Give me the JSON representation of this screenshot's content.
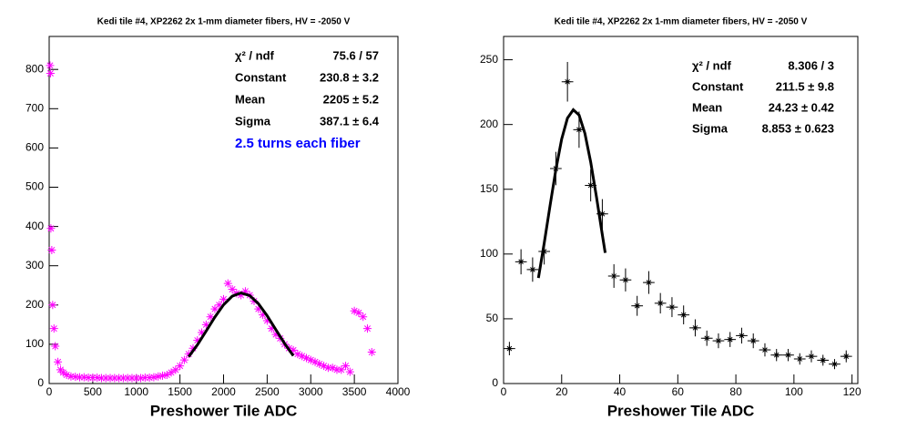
{
  "chart_data": [
    {
      "type": "scatter",
      "title": "Kedi tile #4, XP2262 2x 1-mm diameter fibers, HV = -2050 V",
      "x_label": "Preshower Tile ADC",
      "color": "#ff00ff",
      "marker": "asterisk",
      "xlim": [
        0,
        4000
      ],
      "ylim": [
        0,
        884
      ],
      "xticks": [
        0,
        500,
        1000,
        1500,
        2000,
        2500,
        3000,
        3500,
        4000
      ],
      "yticks": [
        0,
        100,
        200,
        300,
        400,
        500,
        600,
        700,
        800
      ],
      "x": [
        10,
        15,
        20,
        30,
        40,
        55,
        70,
        100,
        130,
        160,
        200,
        250,
        300,
        350,
        400,
        450,
        500,
        550,
        600,
        650,
        700,
        750,
        800,
        850,
        900,
        950,
        1000,
        1050,
        1100,
        1150,
        1200,
        1250,
        1300,
        1350,
        1400,
        1450,
        1500,
        1550,
        1600,
        1650,
        1700,
        1750,
        1800,
        1850,
        1900,
        1950,
        2000,
        2050,
        2100,
        2150,
        2200,
        2250,
        2300,
        2350,
        2400,
        2450,
        2500,
        2550,
        2600,
        2650,
        2700,
        2750,
        2800,
        2850,
        2900,
        2950,
        3000,
        3050,
        3100,
        3150,
        3200,
        3250,
        3300,
        3350,
        3400,
        3450,
        3500,
        3550,
        3600,
        3650,
        3700
      ],
      "values": [
        810,
        790,
        395,
        340,
        200,
        140,
        95,
        55,
        35,
        28,
        22,
        18,
        17,
        16,
        16,
        15,
        15,
        15,
        14,
        14,
        14,
        14,
        14,
        14,
        14,
        14,
        14,
        14,
        15,
        15,
        16,
        18,
        20,
        22,
        28,
        35,
        45,
        60,
        75,
        90,
        110,
        130,
        150,
        170,
        190,
        200,
        215,
        255,
        240,
        230,
        225,
        235,
        225,
        210,
        190,
        175,
        160,
        140,
        125,
        115,
        100,
        90,
        85,
        75,
        70,
        65,
        60,
        55,
        50,
        45,
        40,
        40,
        35,
        35,
        45,
        30,
        185,
        180,
        170,
        140,
        80
      ],
      "fit": {
        "color": "#000000",
        "x": [
          1600,
          1700,
          1800,
          1900,
          2000,
          2100,
          2200,
          2300,
          2400,
          2500,
          2600,
          2700,
          2800
        ],
        "y": [
          68.1,
          98.5,
          133.5,
          169.2,
          200.6,
          222.5,
          230.8,
          224.0,
          203.3,
          172.6,
          137.1,
          101.9,
          70.8
        ]
      },
      "stats": [
        {
          "label": "χ² / ndf",
          "value": "75.6 / 57"
        },
        {
          "label": "Constant",
          "value": "230.8 ± 3.2"
        },
        {
          "label": "Mean",
          "value": "2205 ± 5.2"
        },
        {
          "label": "Sigma",
          "value": "387.1 ± 6.4"
        }
      ],
      "annotation": "2.5 turns each fiber",
      "annotation_color": "#0000ff"
    },
    {
      "type": "scatter",
      "title": "Kedi tile #4, XP2262 2x 1-mm diameter fibers, HV = -2050 V",
      "x_label": "Preshower Tile ADC",
      "color": "#000000",
      "marker": "asterisk",
      "xlim": [
        0,
        122
      ],
      "ylim": [
        0,
        268
      ],
      "xticks": [
        0,
        20,
        40,
        60,
        80,
        100,
        120
      ],
      "yticks": [
        0,
        50,
        100,
        150,
        200,
        250
      ],
      "x": [
        2,
        6,
        10,
        14,
        18,
        22,
        26,
        30,
        34,
        38,
        42,
        46,
        50,
        54,
        58,
        62,
        66,
        70,
        74,
        78,
        82,
        86,
        90,
        94,
        98,
        102,
        106,
        110,
        114,
        118
      ],
      "values": [
        27,
        94,
        88,
        102,
        166,
        233,
        196,
        153,
        131,
        83,
        80,
        60,
        78,
        62,
        59,
        53,
        43,
        35,
        33,
        34,
        37,
        33,
        26,
        22,
        22,
        19,
        21,
        18,
        15,
        21
      ],
      "errors": [
        5.2,
        9.7,
        9.4,
        10.1,
        12.9,
        15.3,
        14.0,
        12.4,
        11.4,
        9.1,
        8.9,
        7.7,
        8.8,
        7.9,
        7.7,
        7.3,
        6.6,
        5.9,
        5.7,
        5.8,
        6.1,
        5.7,
        5.1,
        4.7,
        4.7,
        4.4,
        4.6,
        4.2,
        3.9,
        4.6
      ],
      "x_error": 2,
      "fit": {
        "color": "#000000",
        "x": [
          12,
          14,
          16,
          18,
          20,
          22,
          24,
          26,
          28,
          30,
          32,
          34,
          35
        ],
        "y": [
          81.5,
          108.5,
          137.3,
          165.1,
          188.7,
          204.9,
          211.4,
          207.3,
          193.2,
          171.0,
          143.9,
          115.0,
          100.9
        ]
      },
      "stats": [
        {
          "label": "χ² / ndf",
          "value": "8.306 / 3"
        },
        {
          "label": "Constant",
          "value": "211.5 ± 9.8"
        },
        {
          "label": "Mean",
          "value": "24.23 ± 0.42"
        },
        {
          "label": "Sigma",
          "value": "8.853 ± 0.623"
        }
      ]
    }
  ]
}
